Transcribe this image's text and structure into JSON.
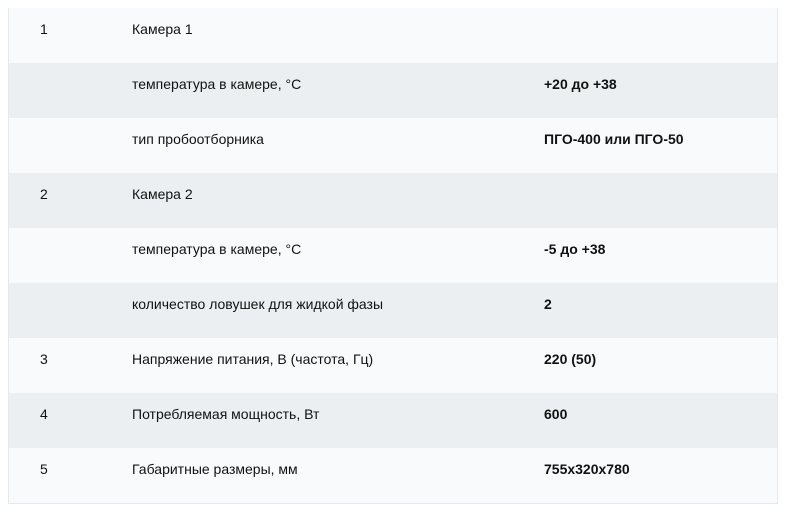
{
  "rows": [
    {
      "num": "1",
      "label": "Камера 1",
      "value": ""
    },
    {
      "num": "",
      "label": "температура в камере, °С",
      "value": "+20 до +38"
    },
    {
      "num": "",
      "label": "тип пробоотборника",
      "value": "ПГО-400 или ПГО-50"
    },
    {
      "num": "2",
      "label": "Камера 2",
      "value": ""
    },
    {
      "num": "",
      "label": "температура в камере, °С",
      "value": "-5 до +38"
    },
    {
      "num": "",
      "label": "количество ловушек для жидкой фазы",
      "value": "2"
    },
    {
      "num": "3",
      "label": "Напряжение питания, В (частота, Гц)",
      "value": "220 (50)"
    },
    {
      "num": "4",
      "label": "Потребляемая мощность, Вт",
      "value": "600"
    },
    {
      "num": "5",
      "label": "Габаритные размеры, мм",
      "value": "755x320x780"
    }
  ]
}
